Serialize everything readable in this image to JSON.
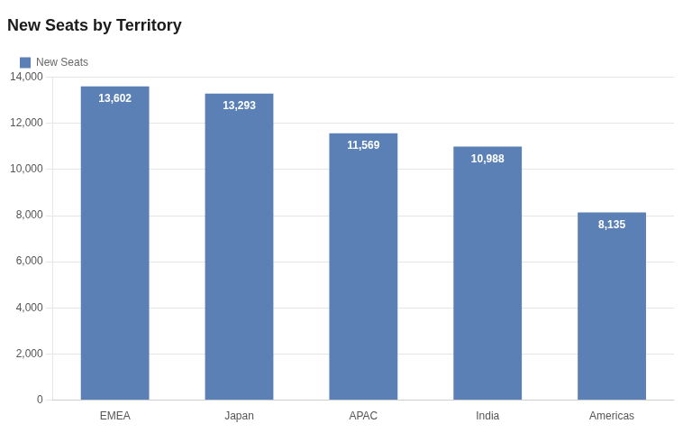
{
  "chart_data": {
    "type": "bar",
    "title": "New Seats by Territory",
    "categories": [
      "EMEA",
      "Japan",
      "APAC",
      "India",
      "Americas"
    ],
    "series": [
      {
        "name": "New Seats",
        "color": "#5b80b5",
        "values": [
          13602,
          13293,
          11569,
          10988,
          8135
        ],
        "value_labels": [
          "13,602",
          "13,293",
          "11,569",
          "10,988",
          "8,135"
        ]
      }
    ],
    "ylim": [
      0,
      14000
    ],
    "yticks": [
      0,
      {
        "value": 2000,
        "label": "2,000"
      },
      {
        "value": 4000,
        "label": "4,000"
      },
      {
        "value": 6000,
        "label": "6,000"
      },
      {
        "value": 8000,
        "label": "8,000"
      },
      {
        "value": 10000,
        "label": "10,000"
      },
      {
        "value": 12000,
        "label": "12,000"
      },
      {
        "value": 14000,
        "label": "14,000"
      }
    ],
    "grid": true,
    "legend": "upper left",
    "data_labels": true
  }
}
